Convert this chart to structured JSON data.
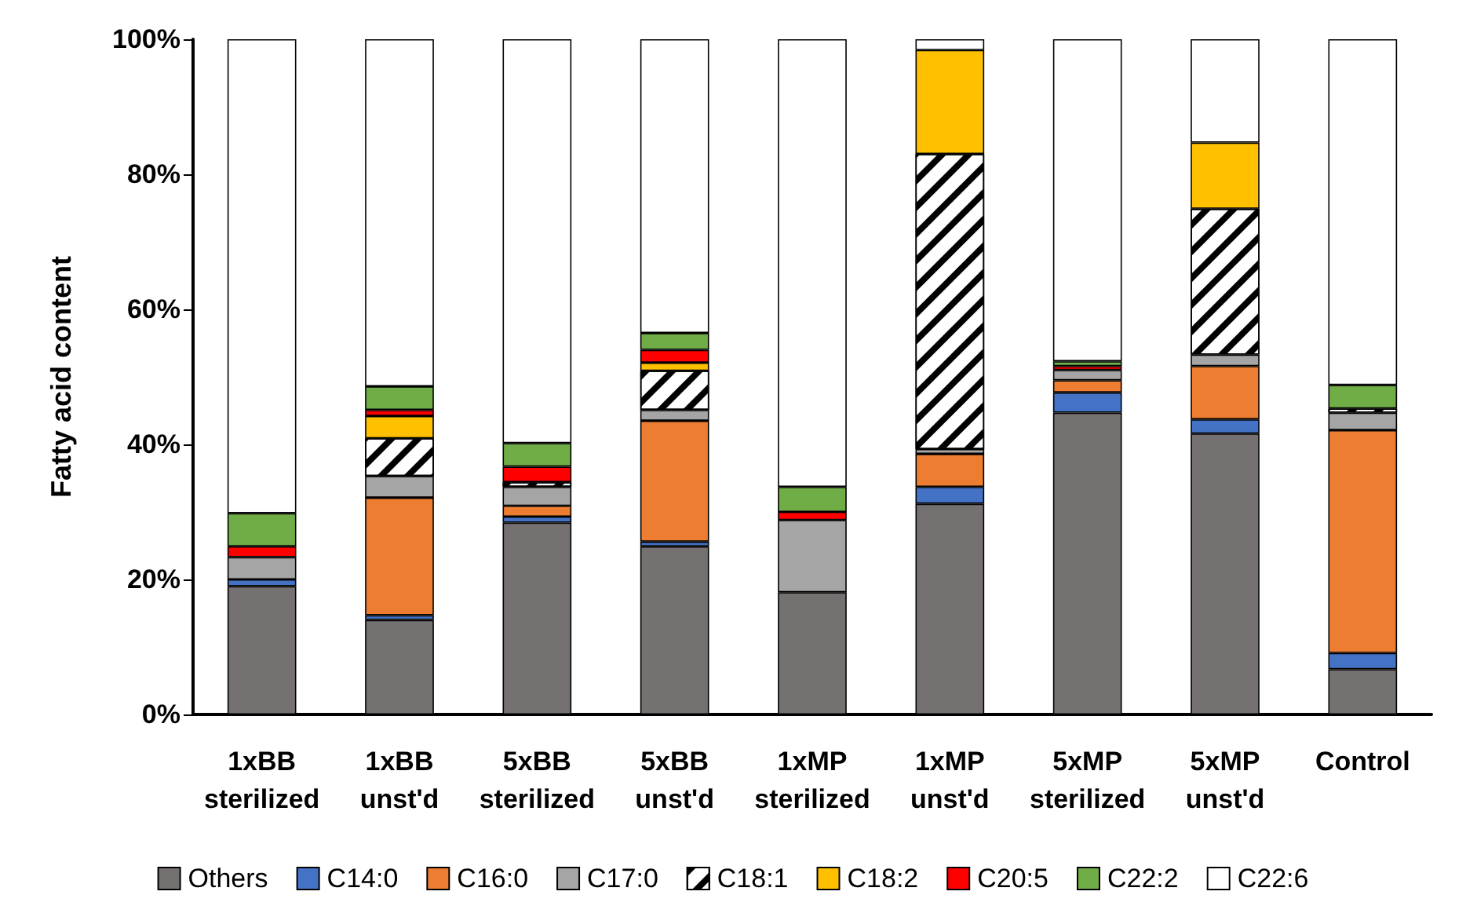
{
  "chart_data": {
    "type": "bar",
    "stacked": true,
    "ylabel": "Fatty acid content",
    "categories": [
      "1xBB\nsterilized",
      "1xBB\nunst'd",
      "5xBB\nsterilized",
      "5xBB\nunst'd",
      "1xMP\nsterilized",
      "1xMP\nunst'd",
      "5xMP\nsterilized",
      "5xMP\nunst'd",
      "Control"
    ],
    "series": [
      {
        "name": "Others",
        "color": "#767171",
        "values": [
          19,
          14,
          28.4,
          24.9,
          18.1,
          31.2,
          44.7,
          41.6,
          6.7
        ]
      },
      {
        "name": "C14:0",
        "color": "#4472c4",
        "values": [
          1,
          0.7,
          0.9,
          0.7,
          0,
          2.5,
          3,
          2.1,
          2.4
        ]
      },
      {
        "name": "C16:0",
        "color": "#ed7d31",
        "values": [
          0,
          17.4,
          1.6,
          17.9,
          0,
          4.9,
          1.8,
          7.9,
          33
        ]
      },
      {
        "name": "C17:0",
        "color": "#a5a5a5",
        "values": [
          3.3,
          3.2,
          2.8,
          1.6,
          10.7,
          0.7,
          1.5,
          1.7,
          2.6
        ]
      },
      {
        "name": "C18:1",
        "color": "#ffffff",
        "values": [
          0,
          5.6,
          0.7,
          5.8,
          0,
          43.7,
          0,
          21.6,
          0.6
        ]
      },
      {
        "name": "C18:2",
        "color": "#ffc000",
        "values": [
          0,
          3.3,
          0,
          1.2,
          0,
          15.4,
          0,
          9.8,
          0
        ]
      },
      {
        "name": "C20:5",
        "color": "#ff0000",
        "values": [
          1.6,
          0.9,
          2.3,
          1.9,
          1.2,
          0,
          0.6,
          0,
          0
        ]
      },
      {
        "name": "C22:2",
        "color": "#70ad47",
        "values": [
          4.9,
          3.5,
          3.5,
          2.5,
          3.7,
          0,
          0.7,
          0,
          3.5
        ]
      },
      {
        "name": "C22:6",
        "color": "#ffffff",
        "values": [
          70.2,
          51.4,
          59.8,
          43.5,
          66.3,
          1.6,
          47.7,
          15.3,
          51.2
        ]
      }
    ],
    "ylim": [
      0,
      100
    ],
    "yticks": [
      {
        "value": 0,
        "label": "0%"
      },
      {
        "value": 20,
        "label": "20%"
      },
      {
        "value": 40,
        "label": "40%"
      },
      {
        "value": 60,
        "label": "60%"
      },
      {
        "value": 80,
        "label": "80%"
      },
      {
        "value": 100,
        "label": "100%"
      }
    ],
    "grid": false,
    "legend": "bottom"
  }
}
